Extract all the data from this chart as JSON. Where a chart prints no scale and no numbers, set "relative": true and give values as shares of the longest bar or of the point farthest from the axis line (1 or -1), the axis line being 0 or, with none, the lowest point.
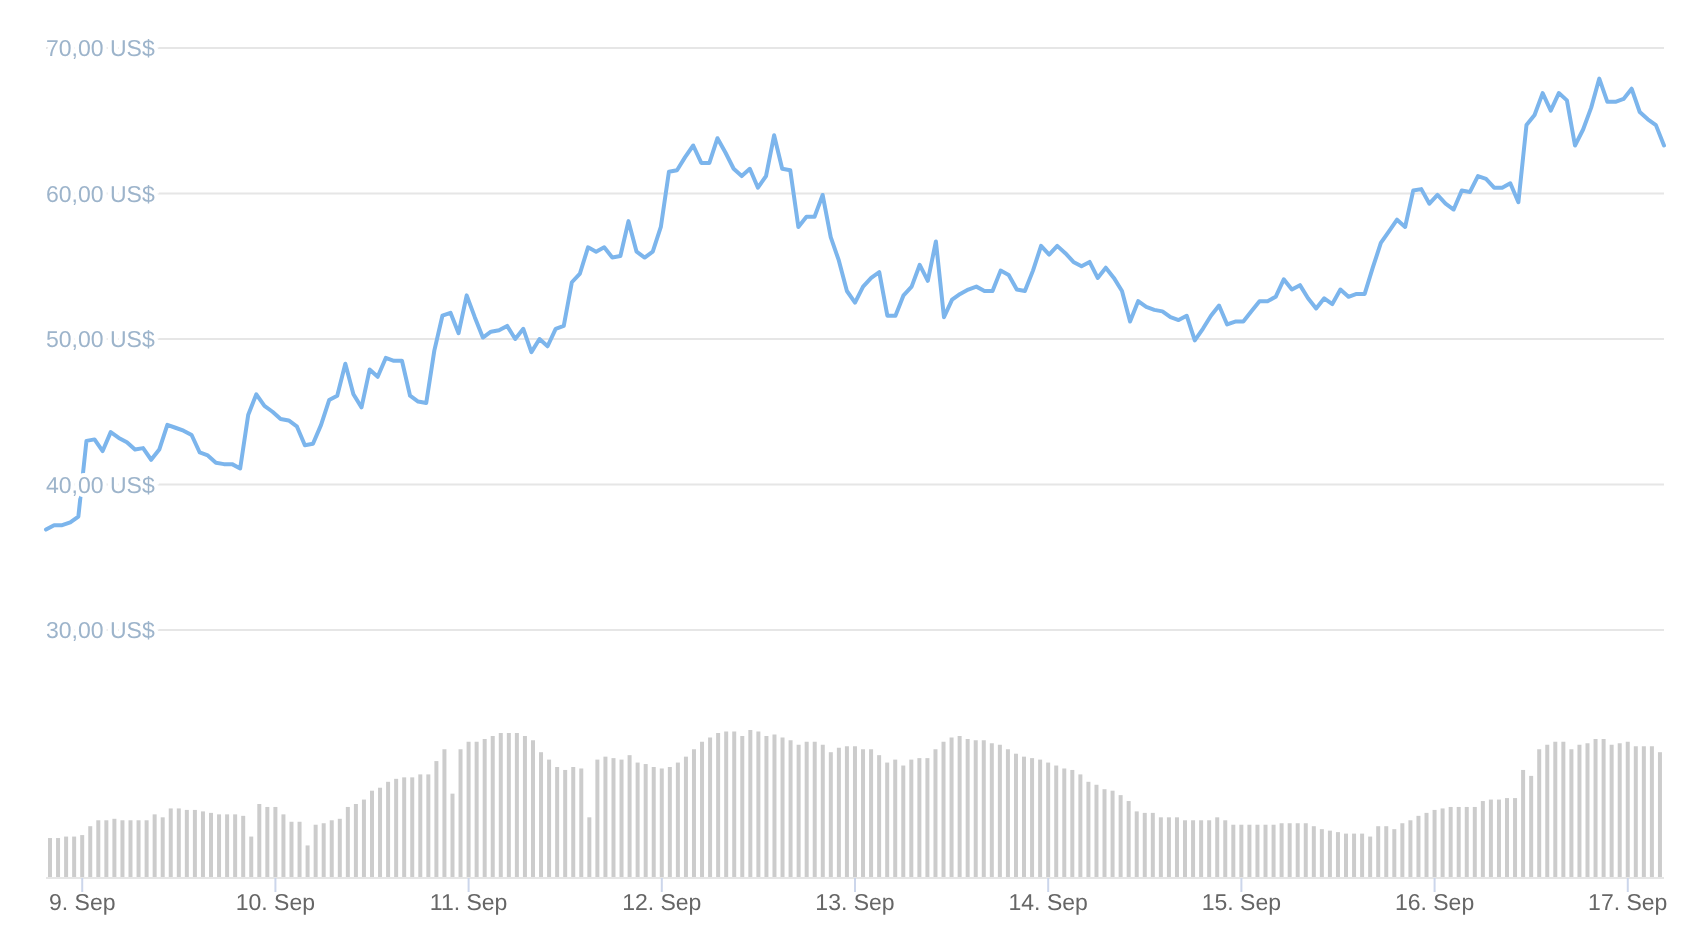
{
  "chart_data": [
    {
      "type": "line",
      "color": "#7cb5ec",
      "ylim": [
        30,
        70
      ],
      "yticks": [
        {
          "value": 30,
          "label": "30,00 US$"
        },
        {
          "value": 40,
          "label": "40,00 US$"
        },
        {
          "value": 50,
          "label": "50,00 US$"
        },
        {
          "value": 60,
          "label": "60,00 US$"
        },
        {
          "value": 70,
          "label": "70,00 US$"
        }
      ],
      "grid": "y",
      "categories": [
        null,
        null,
        null,
        null,
        null,
        null,
        null,
        null,
        null,
        null,
        null,
        null,
        null,
        null,
        null,
        null,
        null,
        null,
        null,
        null,
        null,
        null,
        null,
        null,
        null,
        null,
        null,
        null,
        null,
        null,
        null,
        null,
        null,
        null,
        null,
        null,
        null,
        null,
        null,
        null,
        null,
        null,
        null,
        null,
        null,
        null,
        null,
        null,
        null,
        null,
        null,
        null,
        null,
        null,
        null,
        null,
        null,
        null,
        null,
        null,
        null,
        null,
        null,
        null,
        null,
        null,
        null,
        null,
        null,
        null,
        null,
        null,
        null,
        null,
        null,
        null,
        null,
        null,
        null,
        null,
        null,
        null,
        null,
        null,
        null,
        null,
        null,
        null,
        null,
        null,
        null,
        null,
        null,
        null,
        null,
        null,
        null,
        null,
        null,
        null,
        null,
        null,
        null,
        null,
        null,
        null,
        null,
        null,
        null,
        null,
        null,
        null,
        null,
        null,
        null,
        null,
        null,
        null,
        null,
        null,
        null,
        null,
        null,
        null,
        null,
        null,
        null,
        null,
        null,
        null,
        null,
        null,
        null,
        null,
        null,
        null,
        null,
        null,
        null,
        null,
        null,
        null,
        null,
        null,
        null,
        null,
        null,
        null,
        null,
        null,
        null,
        null,
        null,
        null,
        null,
        null,
        null,
        null,
        null,
        null,
        null,
        null,
        null,
        null,
        null,
        null,
        null,
        null,
        null,
        null,
        null,
        null,
        null,
        null,
        null,
        null,
        null,
        null,
        null,
        null,
        null,
        null,
        null,
        null,
        null,
        null,
        null,
        null,
        null,
        null,
        null,
        null,
        null,
        null,
        null,
        null,
        null,
        null,
        null,
        null,
        null
      ],
      "values": [
        36.9,
        37.2,
        37.2,
        37.4,
        37.8,
        43.0,
        43.1,
        42.3,
        43.6,
        43.2,
        42.9,
        42.4,
        42.5,
        41.7,
        42.4,
        44.1,
        43.9,
        43.7,
        43.4,
        42.2,
        42.0,
        41.5,
        41.4,
        41.4,
        41.1,
        44.8,
        46.2,
        45.4,
        45.0,
        44.5,
        44.4,
        44.0,
        42.7,
        42.8,
        44.1,
        45.8,
        46.1,
        48.3,
        46.2,
        45.3,
        47.9,
        47.4,
        48.7,
        48.5,
        48.5,
        46.1,
        45.7,
        45.6,
        49.2,
        51.6,
        51.8,
        50.4,
        53.0,
        51.5,
        50.1,
        50.5,
        50.6,
        50.9,
        50.0,
        50.7,
        49.1,
        50.0,
        49.5,
        50.7,
        50.9,
        53.9,
        54.5,
        56.3,
        56.0,
        56.3,
        55.6,
        55.7,
        58.1,
        56.0,
        55.6,
        56.0,
        57.7,
        61.5,
        61.6,
        62.5,
        63.3,
        62.1,
        62.1,
        63.8,
        62.8,
        61.7,
        61.2,
        61.7,
        60.4,
        61.2,
        64.0,
        61.7,
        61.6,
        57.7,
        58.4,
        58.4,
        59.9,
        57.0,
        55.4,
        53.3,
        52.5,
        53.6,
        54.2,
        54.6,
        51.6,
        51.6,
        53.0,
        53.6,
        55.1,
        54.0,
        56.7,
        51.5,
        52.7,
        53.1,
        53.4,
        53.6,
        53.3,
        53.3,
        54.7,
        54.4,
        53.4,
        53.3,
        54.7,
        56.4,
        55.8,
        56.4,
        55.9,
        55.3,
        55.0,
        55.3,
        54.2,
        54.9,
        54.2,
        53.3,
        51.2,
        52.6,
        52.2,
        52.0,
        51.9,
        51.5,
        51.3,
        51.6,
        49.9,
        50.7,
        51.6,
        52.3,
        51.0,
        51.2,
        51.2,
        51.9,
        52.6,
        52.6,
        52.9,
        54.1,
        53.4,
        53.7,
        52.8,
        52.1,
        52.8,
        52.4,
        53.4,
        52.9,
        53.1,
        53.1,
        54.9,
        56.6,
        57.4,
        58.2,
        57.7,
        60.2,
        60.3,
        59.3,
        59.9,
        59.3,
        58.9,
        60.2,
        60.1,
        61.2,
        61.0,
        60.4,
        60.4,
        60.7,
        59.4,
        64.7,
        65.4,
        66.9,
        65.7,
        66.9,
        66.4,
        63.3,
        64.4,
        65.9,
        67.9,
        66.3,
        66.3,
        66.5,
        67.2,
        65.6,
        65.1,
        64.7,
        63.3
      ]
    },
    {
      "type": "bar",
      "color": "#cccccc",
      "relative": true,
      "categories": [
        null,
        null,
        null,
        null,
        "9. Sep",
        null,
        null,
        null,
        null,
        null,
        null,
        null,
        null,
        null,
        null,
        null,
        null,
        null,
        null,
        null,
        null,
        null,
        null,
        null,
        null,
        null,
        null,
        null,
        "10. Sep",
        null,
        null,
        null,
        null,
        null,
        null,
        null,
        null,
        null,
        null,
        null,
        null,
        null,
        null,
        null,
        null,
        null,
        null,
        null,
        null,
        null,
        null,
        null,
        "11. Sep",
        null,
        null,
        null,
        null,
        null,
        null,
        null,
        null,
        null,
        null,
        null,
        null,
        null,
        null,
        null,
        null,
        null,
        null,
        null,
        null,
        null,
        null,
        null,
        "12. Sep",
        null,
        null,
        null,
        null,
        null,
        null,
        null,
        null,
        null,
        null,
        null,
        null,
        null,
        null,
        null,
        null,
        null,
        null,
        null,
        null,
        null,
        null,
        null,
        "13. Sep",
        null,
        null,
        null,
        null,
        null,
        null,
        null,
        null,
        null,
        null,
        null,
        null,
        null,
        null,
        null,
        null,
        null,
        null,
        null,
        null,
        null,
        null,
        null,
        "14. Sep",
        null,
        null,
        null,
        null,
        null,
        null,
        null,
        null,
        null,
        null,
        null,
        null,
        null,
        null,
        null,
        null,
        null,
        null,
        null,
        null,
        null,
        null,
        null,
        "15. Sep",
        null,
        null,
        null,
        null,
        null,
        null,
        null,
        null,
        null,
        null,
        null,
        null,
        null,
        null,
        null,
        null,
        null,
        null,
        null,
        null,
        null,
        null,
        null,
        "16. Sep",
        null,
        null,
        null,
        null,
        null,
        null,
        null,
        null,
        null,
        null,
        null,
        null,
        null,
        null,
        null,
        null,
        null,
        null,
        null,
        null,
        null,
        null,
        null,
        "17. Sep",
        null,
        null,
        null,
        null
      ],
      "values": [
        0.27,
        0.27,
        0.28,
        0.28,
        0.29,
        0.35,
        0.39,
        0.39,
        0.4,
        0.39,
        0.39,
        0.39,
        0.39,
        0.43,
        0.41,
        0.47,
        0.47,
        0.46,
        0.46,
        0.45,
        0.44,
        0.43,
        0.43,
        0.43,
        0.42,
        0.28,
        0.5,
        0.48,
        0.48,
        0.43,
        0.38,
        0.38,
        0.22,
        0.36,
        0.37,
        0.39,
        0.4,
        0.48,
        0.5,
        0.53,
        0.59,
        0.61,
        0.65,
        0.67,
        0.68,
        0.68,
        0.7,
        0.7,
        0.79,
        0.87,
        0.57,
        0.87,
        0.92,
        0.92,
        0.94,
        0.96,
        0.98,
        0.98,
        0.98,
        0.96,
        0.93,
        0.85,
        0.8,
        0.75,
        0.73,
        0.75,
        0.74,
        0.41,
        0.8,
        0.82,
        0.81,
        0.8,
        0.83,
        0.78,
        0.77,
        0.75,
        0.74,
        0.75,
        0.78,
        0.82,
        0.87,
        0.92,
        0.95,
        0.98,
        0.99,
        0.99,
        0.96,
        1,
        0.99,
        0.96,
        0.97,
        0.95,
        0.93,
        0.9,
        0.92,
        0.92,
        0.9,
        0.85,
        0.88,
        0.89,
        0.89,
        0.87,
        0.87,
        0.83,
        0.78,
        0.8,
        0.76,
        0.8,
        0.81,
        0.81,
        0.87,
        0.92,
        0.95,
        0.96,
        0.94,
        0.93,
        0.93,
        0.91,
        0.9,
        0.87,
        0.84,
        0.82,
        0.81,
        0.8,
        0.78,
        0.76,
        0.74,
        0.73,
        0.7,
        0.65,
        0.63,
        0.6,
        0.59,
        0.56,
        0.52,
        0.45,
        0.44,
        0.44,
        0.41,
        0.41,
        0.41,
        0.39,
        0.39,
        0.39,
        0.39,
        0.41,
        0.39,
        0.36,
        0.36,
        0.36,
        0.36,
        0.36,
        0.36,
        0.37,
        0.37,
        0.37,
        0.37,
        0.35,
        0.33,
        0.32,
        0.31,
        0.3,
        0.3,
        0.3,
        0.28,
        0.35,
        0.35,
        0.33,
        0.37,
        0.39,
        0.42,
        0.44,
        0.46,
        0.47,
        0.48,
        0.48,
        0.48,
        0.48,
        0.52,
        0.53,
        0.53,
        0.54,
        0.54,
        0.73,
        0.69,
        0.87,
        0.9,
        0.92,
        0.92,
        0.87,
        0.9,
        0.91,
        0.94,
        0.94,
        0.9,
        0.91,
        0.92,
        0.89,
        0.89,
        0.89,
        0.85
      ]
    }
  ]
}
